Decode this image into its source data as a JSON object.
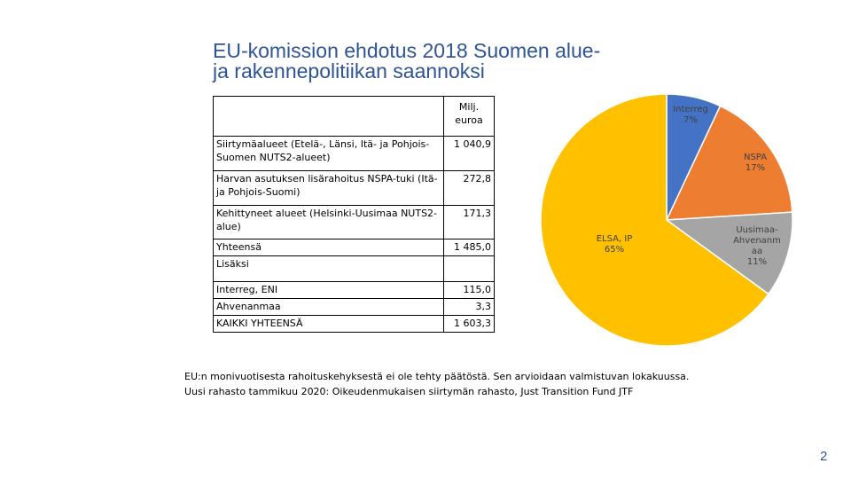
{
  "title": {
    "line1": "EU-komission ehdotus 2018 Suomen alue-",
    "line2": "ja rakennepolitiikan saannoksi"
  },
  "table": {
    "header_value": "Milj. euroa",
    "rows": [
      {
        "label": "Siirtymäalueet (Etelä-, Länsi, Itä- ja Pohjois-Suomen NUTS2-alueet)",
        "value": "1 040,9"
      },
      {
        "label": "Harvan asutuksen lisärahoitus NSPA-tuki (Itä- ja Pohjois-Suomi)",
        "value": "272,8"
      },
      {
        "label": "Kehittyneet alueet (Helsinki-Uusimaa NUTS2-alue)",
        "value": "171,3"
      },
      {
        "label": "Yhteensä",
        "value": "1 485,0"
      },
      {
        "label": "Lisäksi",
        "value": ""
      },
      {
        "label": "Interreg, ENI",
        "value": "115,0"
      },
      {
        "label": "Ahvenanmaa",
        "value": "3,3"
      },
      {
        "label": "KAIKKI YHTEENSÄ",
        "value": "1 603,3"
      }
    ]
  },
  "chart_data": {
    "type": "pie",
    "title": "",
    "slices": [
      {
        "name": "Interreg",
        "value": 7,
        "label": "Interreg 7%",
        "color": "#4472c4"
      },
      {
        "name": "NSPA",
        "value": 17,
        "label": "NSPA 17%",
        "color": "#ed7d31"
      },
      {
        "name": "Uusimaa-Ahvenanmaa",
        "value": 11,
        "label": "Uusimaa-Ahvenanmaa 11%",
        "color": "#a5a5a5"
      },
      {
        "name": "ELSA, IP",
        "value": 65,
        "label": "ELSA, IP 65%",
        "color": "#ffc000"
      }
    ],
    "labels_lines": {
      "interreg": [
        "Interreg",
        "7%"
      ],
      "nspa": [
        "NSPA",
        "17%"
      ],
      "uusimaa": [
        "Uusimaa-",
        "Ahvenanm",
        "aa",
        "11%"
      ],
      "elsa": [
        "ELSA, IP",
        "65%"
      ]
    }
  },
  "notes": {
    "line1": "EU:n monivuotisesta rahoituskehyksestä ei ole tehty päätöstä. Sen arvioidaan valmistuvan lokakuussa.",
    "line2": "Uusi rahasto tammikuu 2020: Oikeudenmukaisen siirtymän rahasto, Just Transition Fund JTF"
  },
  "page_number": "2"
}
